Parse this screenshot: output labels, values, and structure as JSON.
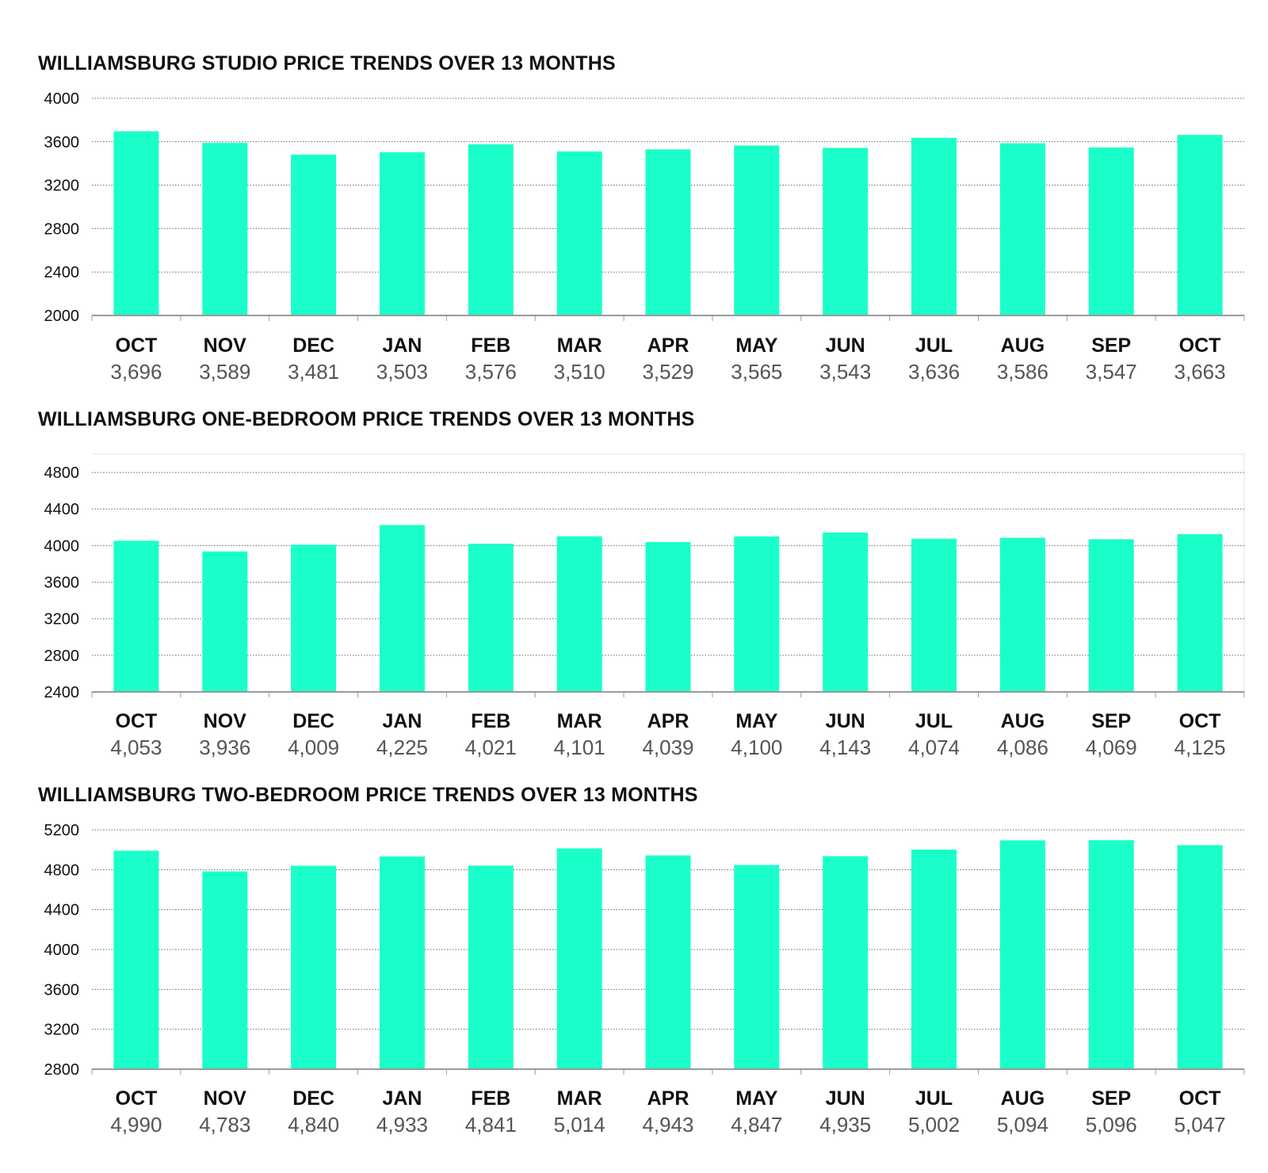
{
  "colors": {
    "bar": "#1affc9",
    "text": "#111111",
    "value_text": "#555555"
  },
  "chart_data": [
    {
      "type": "bar",
      "title": "WILLIAMSBURG STUDIO PRICE TRENDS OVER 13 MONTHS",
      "categories": [
        "OCT",
        "NOV",
        "DEC",
        "JAN",
        "FEB",
        "MAR",
        "APR",
        "MAY",
        "JUN",
        "JUL",
        "AUG",
        "SEP",
        "OCT"
      ],
      "values": [
        3696,
        3589,
        3481,
        3503,
        3576,
        3510,
        3529,
        3565,
        3543,
        3636,
        3586,
        3547,
        3663
      ],
      "value_labels": [
        "3,696",
        "3,589",
        "3,481",
        "3,503",
        "3,576",
        "3,510",
        "3,529",
        "3,565",
        "3,543",
        "3,636",
        "3,586",
        "3,547",
        "3,663"
      ],
      "yticks": [
        2000,
        2400,
        2800,
        3200,
        3600,
        4000
      ],
      "ylim": [
        2000,
        4000
      ],
      "grid": true
    },
    {
      "type": "bar",
      "title": "WILLIAMSBURG ONE-BEDROOM PRICE TRENDS OVER 13 MONTHS",
      "categories": [
        "OCT",
        "NOV",
        "DEC",
        "JAN",
        "FEB",
        "MAR",
        "APR",
        "MAY",
        "JUN",
        "JUL",
        "AUG",
        "SEP",
        "OCT"
      ],
      "values": [
        4053,
        3936,
        4009,
        4225,
        4021,
        4101,
        4039,
        4100,
        4143,
        4074,
        4086,
        4069,
        4125
      ],
      "value_labels": [
        "4,053",
        "3,936",
        "4,009",
        "4,225",
        "4,021",
        "4,101",
        "4,039",
        "4,100",
        "4,143",
        "4,074",
        "4,086",
        "4,069",
        "4,125"
      ],
      "yticks": [
        2400,
        2800,
        3200,
        3600,
        4000,
        4400,
        4800
      ],
      "ylim": [
        2400,
        5000
      ],
      "grid": true
    },
    {
      "type": "bar",
      "title": "WILLIAMSBURG TWO-BEDROOM PRICE TRENDS OVER 13 MONTHS",
      "categories": [
        "OCT",
        "NOV",
        "DEC",
        "JAN",
        "FEB",
        "MAR",
        "APR",
        "MAY",
        "JUN",
        "JUL",
        "AUG",
        "SEP",
        "OCT"
      ],
      "values": [
        4990,
        4783,
        4840,
        4933,
        4841,
        5014,
        4943,
        4847,
        4935,
        5002,
        5094,
        5096,
        5047
      ],
      "value_labels": [
        "4,990",
        "4,783",
        "4,840",
        "4,933",
        "4,841",
        "5,014",
        "4,943",
        "4,847",
        "4,935",
        "5,002",
        "5,094",
        "5,096",
        "5,047"
      ],
      "yticks": [
        2800,
        3200,
        3600,
        4000,
        4400,
        4800,
        5200
      ],
      "ylim": [
        2800,
        5200
      ],
      "grid": true
    }
  ]
}
